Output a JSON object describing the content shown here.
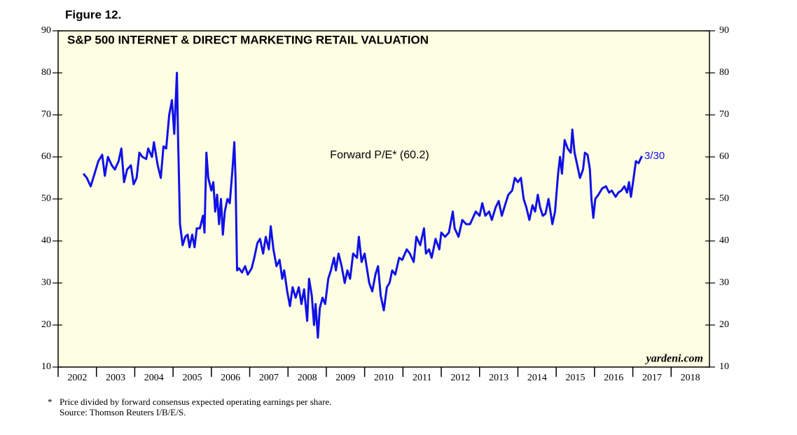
{
  "chart_data": {
    "type": "line",
    "figure_label": "Figure 12.",
    "title": "S&P 500 INTERNET & DIRECT MARKETING RETAIL VALUATION",
    "ylim": [
      10,
      90
    ],
    "yticks": [
      10,
      20,
      30,
      40,
      50,
      60,
      70,
      80,
      90
    ],
    "xlim": [
      2002,
      2019
    ],
    "xticks": [
      2002,
      2003,
      2004,
      2005,
      2006,
      2007,
      2008,
      2009,
      2010,
      2011,
      2012,
      2013,
      2014,
      2015,
      2016,
      2017,
      2018
    ],
    "x": [
      2002.66,
      2002.75,
      2002.85,
      2002.95,
      2003.05,
      2003.15,
      2003.22,
      2003.3,
      2003.4,
      2003.48,
      2003.58,
      2003.65,
      2003.72,
      2003.8,
      2003.9,
      2003.97,
      2004.05,
      2004.12,
      2004.2,
      2004.3,
      2004.35,
      2004.45,
      2004.5,
      2004.6,
      2004.68,
      2004.75,
      2004.82,
      2004.9,
      2004.97,
      2005.03,
      2005.1,
      2005.13,
      2005.18,
      2005.25,
      2005.32,
      2005.38,
      2005.43,
      2005.5,
      2005.56,
      2005.62,
      2005.7,
      2005.78,
      2005.82,
      2005.87,
      2005.92,
      2006.0,
      2006.05,
      2006.1,
      2006.15,
      2006.2,
      2006.25,
      2006.3,
      2006.35,
      2006.42,
      2006.48,
      2006.55,
      2006.6,
      2006.63,
      2006.67,
      2006.72,
      2006.8,
      2006.88,
      2006.95,
      2007.05,
      2007.12,
      2007.2,
      2007.27,
      2007.35,
      2007.42,
      2007.5,
      2007.55,
      2007.62,
      2007.7,
      2007.78,
      2007.85,
      2007.9,
      2007.98,
      2008.05,
      2008.12,
      2008.2,
      2008.28,
      2008.35,
      2008.42,
      2008.5,
      2008.55,
      2008.62,
      2008.68,
      2008.72,
      2008.78,
      2008.83,
      2008.9,
      2008.97,
      2009.05,
      2009.12,
      2009.2,
      2009.25,
      2009.32,
      2009.4,
      2009.48,
      2009.55,
      2009.62,
      2009.7,
      2009.8,
      2009.85,
      2009.92,
      2010.0,
      2010.05,
      2010.12,
      2010.2,
      2010.28,
      2010.35,
      2010.42,
      2010.5,
      2010.58,
      2010.65,
      2010.72,
      2010.8,
      2010.9,
      2010.98,
      2011.1,
      2011.18,
      2011.28,
      2011.35,
      2011.45,
      2011.55,
      2011.6,
      2011.68,
      2011.75,
      2011.85,
      2011.95,
      2012.0,
      2012.1,
      2012.2,
      2012.3,
      2012.35,
      2012.45,
      2012.55,
      2012.65,
      2012.75,
      2012.85,
      2012.9,
      2013.0,
      2013.07,
      2013.15,
      2013.25,
      2013.32,
      2013.42,
      2013.5,
      2013.58,
      2013.68,
      2013.75,
      2013.85,
      2013.92,
      2014.0,
      2014.08,
      2014.15,
      2014.22,
      2014.3,
      2014.38,
      2014.45,
      2014.52,
      2014.58,
      2014.65,
      2014.72,
      2014.8,
      2014.9,
      2014.97,
      2015.05,
      2015.1,
      2015.15,
      2015.22,
      2015.3,
      2015.38,
      2015.42,
      2015.48,
      2015.55,
      2015.62,
      2015.7,
      2015.75,
      2015.82,
      2015.88,
      2015.92,
      2015.97,
      2016.02,
      2016.1,
      2016.2,
      2016.3,
      2016.38,
      2016.45,
      2016.55,
      2016.62,
      2016.7,
      2016.78,
      2016.85,
      2016.9,
      2016.95,
      2017.02,
      2017.08,
      2017.15,
      2017.2,
      2017.24
    ],
    "series": [
      {
        "name": "Forward P/E* (60.2)",
        "color": "#1010e8",
        "values": [
          56,
          55,
          53,
          56,
          59,
          60.5,
          55.5,
          60,
          58,
          57,
          59,
          62,
          54,
          57,
          58,
          53.5,
          55,
          61,
          60,
          59.5,
          62,
          60,
          63.5,
          58,
          55,
          62.5,
          62,
          70,
          73.5,
          65.5,
          80,
          65,
          44,
          39,
          41,
          41.5,
          38.5,
          41.5,
          38.5,
          43,
          43,
          46,
          42,
          61,
          55,
          52,
          54,
          47,
          51,
          44,
          50,
          41.5,
          47,
          50,
          49,
          57,
          63.5,
          55,
          33,
          33.5,
          32.5,
          34,
          32,
          33.5,
          36,
          39.5,
          40.5,
          37,
          41,
          38,
          43.5,
          38,
          34,
          35.5,
          31,
          33,
          28,
          24.5,
          29,
          26.5,
          29,
          25,
          28.5,
          21,
          31,
          27,
          20,
          25,
          17,
          24,
          26.5,
          25,
          31,
          33,
          36,
          33,
          37,
          34,
          30,
          33,
          31,
          37,
          36,
          41,
          35,
          37,
          34,
          30,
          28,
          32,
          34,
          27,
          23.5,
          29,
          30,
          33,
          32,
          36,
          35.5,
          38,
          37,
          35,
          41,
          39,
          43,
          37,
          38,
          36,
          40.5,
          38,
          42,
          41,
          42,
          47,
          43,
          41,
          45,
          44,
          44,
          46,
          47,
          46,
          49,
          46,
          47,
          45,
          48,
          49.5,
          46,
          49,
          51,
          52,
          55,
          54,
          55,
          50,
          48,
          45,
          48.5,
          47,
          51,
          48,
          46,
          46.5,
          50,
          44,
          47,
          56,
          60,
          56,
          64,
          62,
          61,
          66.5,
          61,
          58,
          55,
          57,
          61,
          60.5,
          57,
          50,
          45.5,
          50,
          51,
          52.5,
          53,
          51.5,
          52,
          50.5,
          51.5,
          52,
          53,
          51.5,
          54,
          50.5,
          55,
          59,
          58.5,
          59.5,
          60.2
        ]
      }
    ],
    "annotation": "3/30",
    "source_mark": "yardeni.com",
    "footnote_marker": "*",
    "footnote": "Price divided by forward consensus expected operating earnings per share.",
    "source": "Source: Thomson Reuters I/B/E/S."
  }
}
